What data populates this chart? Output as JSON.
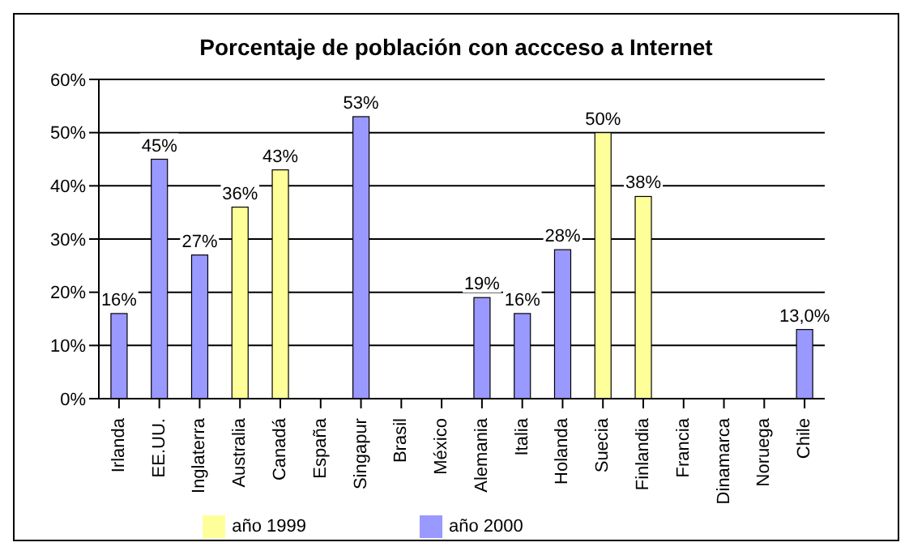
{
  "chart_data": {
    "type": "bar",
    "title": "Porcentaje de población con accceso a Internet",
    "categories": [
      "Irlanda",
      "EE.UU.",
      "Inglaterra",
      "Australia",
      "Canadá",
      "España",
      "Singapur",
      "Brasil",
      "México",
      "Alemania",
      "Italia",
      "Holanda",
      "Suecia",
      "Finlandia",
      "Francia",
      "Dinamarca",
      "Noruega",
      "Chile"
    ],
    "series": [
      {
        "name": "año 1999",
        "color": "#ffff99",
        "values": [
          null,
          null,
          null,
          36,
          43,
          null,
          null,
          null,
          null,
          null,
          null,
          null,
          50,
          38,
          null,
          null,
          null,
          null
        ],
        "value_labels": [
          null,
          null,
          null,
          "36%",
          "43%",
          null,
          null,
          null,
          null,
          null,
          null,
          null,
          "50%",
          "38%",
          null,
          null,
          null,
          null
        ]
      },
      {
        "name": "año 2000",
        "color": "#9999ff",
        "values": [
          16,
          45,
          27,
          null,
          null,
          null,
          53,
          null,
          null,
          19,
          16,
          28,
          null,
          null,
          null,
          null,
          null,
          13
        ],
        "value_labels": [
          "16%",
          "45%",
          "27%",
          null,
          null,
          null,
          "53%",
          null,
          null,
          "19%",
          "16%",
          "28%",
          null,
          null,
          null,
          null,
          null,
          "13,0%"
        ]
      }
    ],
    "stacked": true,
    "ylim": [
      0,
      60
    ],
    "yticks": [
      {
        "value": 0,
        "label": "0%"
      },
      {
        "value": 10,
        "label": "10%"
      },
      {
        "value": 20,
        "label": "20%"
      },
      {
        "value": 30,
        "label": "30%"
      },
      {
        "value": 40,
        "label": "40%"
      },
      {
        "value": 50,
        "label": "50%"
      },
      {
        "value": 60,
        "label": "60%"
      }
    ],
    "grid": "y",
    "legend": "bottom"
  }
}
